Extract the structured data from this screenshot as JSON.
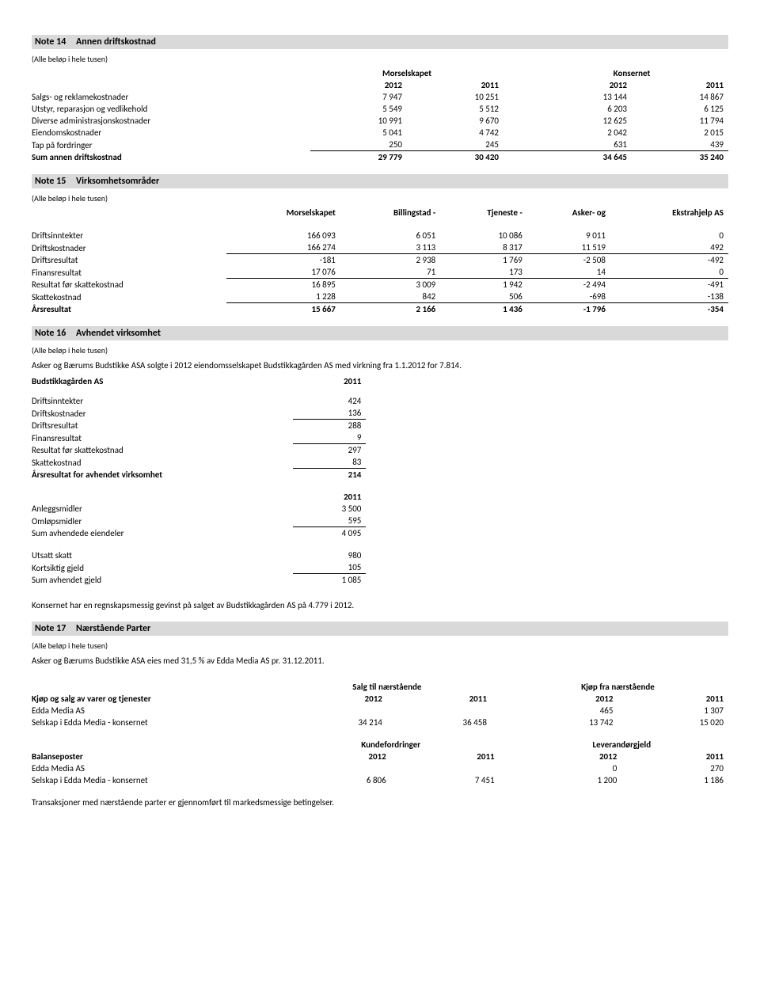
{
  "note14": {
    "title_num": "Note 14",
    "title_text": "Annen driftskostnad",
    "sub": "(Alle beløp i hele tusen)",
    "group_left": "Morselskapet",
    "group_right": "Konsernet",
    "years": [
      "2012",
      "2011",
      "2012",
      "2011"
    ],
    "rows": [
      {
        "label": "Salgs- og reklamekostnader",
        "v": [
          "7 947",
          "10 251",
          "13 144",
          "14 867"
        ]
      },
      {
        "label": "Utstyr, reparasjon og vedlikehold",
        "v": [
          "5 549",
          "5 512",
          "6 203",
          "6 125"
        ]
      },
      {
        "label": "Diverse administrasjonskostnader",
        "v": [
          "10 991",
          "9 670",
          "12 625",
          "11 794"
        ]
      },
      {
        "label": "Eiendomskostnader",
        "v": [
          "5 041",
          "4 742",
          "2 042",
          "2 015"
        ]
      },
      {
        "label": "Tap på fordringer",
        "v": [
          "250",
          "245",
          "631",
          "439"
        ]
      }
    ],
    "sum_label": "Sum annen driftskostnad",
    "sum": [
      "29 779",
      "30 420",
      "34 645",
      "35 240"
    ]
  },
  "note15": {
    "title_num": "Note 15",
    "title_text": "Virksomhetsområder",
    "sub": "(Alle beløp i hele tusen)",
    "cols": [
      "Morselskapet",
      "Billingstad -",
      "Tjeneste -",
      "Asker- og",
      "Ekstrahjelp AS"
    ],
    "rows": [
      {
        "label": "Driftsinntekter",
        "v": [
          "166 093",
          "6 051",
          "10 086",
          "9 011",
          "0"
        ]
      },
      {
        "label": "Driftskostnader",
        "v": [
          "166 274",
          "3 113",
          "8 317",
          "11 519",
          "492"
        ],
        "u": true
      },
      {
        "label": "Driftsresultat",
        "v": [
          "-181",
          "2 938",
          "1 769",
          "-2 508",
          "-492"
        ]
      },
      {
        "label": "Finansresultat",
        "v": [
          "17 076",
          "71",
          "173",
          "14",
          "0"
        ],
        "u": true
      },
      {
        "label": "Resultat før skattekostnad",
        "v": [
          "16 895",
          "3 009",
          "1 942",
          "-2 494",
          "-491"
        ]
      },
      {
        "label": "Skattekostnad",
        "v": [
          "1 228",
          "842",
          "506",
          "-698",
          "-138"
        ],
        "u": true
      },
      {
        "label": "Årsresultat",
        "v": [
          "15 667",
          "2 166",
          "1 436",
          "-1 796",
          "-354"
        ],
        "b": true
      }
    ]
  },
  "note16": {
    "title_num": "Note 16",
    "title_text": "Avhendet virksomhet",
    "sub": "(Alle beløp i hele tusen)",
    "intro": "Asker og Bærums Budstikke ASA solgte i 2012 eiendomsselskapet Budstikkagården AS med virkning fra 1.1.2012 for 7.814.",
    "t1_header_label": "Budstikkagården AS",
    "t1_header_year": "2011",
    "t1": [
      {
        "label": "Driftsinntekter",
        "v": "424"
      },
      {
        "label": "Driftskostnader",
        "v": "136",
        "u": true
      },
      {
        "label": "Driftsresultat",
        "v": "288"
      },
      {
        "label": "Finansresultat",
        "v": "9",
        "u": true
      },
      {
        "label": "Resultat før skattekostnad",
        "v": "297"
      },
      {
        "label": "Skattekostnad",
        "v": "83",
        "u": true
      },
      {
        "label": "Årsresultat for avhendet virksomhet",
        "v": "214",
        "b": true
      }
    ],
    "t2_header_year": "2011",
    "t2": [
      {
        "label": "Anleggsmidler",
        "v": "3 500"
      },
      {
        "label": "Omløpsmidler",
        "v": "595",
        "u": true
      },
      {
        "label": "Sum avhendede eiendeler",
        "v": "4 095"
      }
    ],
    "t3": [
      {
        "label": "Utsatt skatt",
        "v": "980"
      },
      {
        "label": "Kortsiktig gjeld",
        "v": "105",
        "u": true
      },
      {
        "label": "Sum avhendet gjeld",
        "v": "1 085"
      }
    ],
    "gain_text": "Konsernet har en regnskapsmessig gevinst på salget av Budstikkagården AS på 4.779 i 2012."
  },
  "note17": {
    "title_num": "Note 17",
    "title_text": "Nærstående Parter",
    "sub": "(Alle beløp i hele tusen)",
    "intro": "Asker og Bærums Budstikke ASA eies med 31,5 % av Edda Media AS pr. 31.12.2011.",
    "block1": {
      "group_left": "Salg til nærstående",
      "group_right": "Kjøp fra nærstående",
      "row_label": "Kjøp og salg av varer og tjenester",
      "years": [
        "2012",
        "2011",
        "2012",
        "2011"
      ],
      "rows": [
        {
          "label": "Edda Media AS",
          "v": [
            "",
            "",
            "465",
            "1 307"
          ]
        },
        {
          "label": "Selskap i Edda Media - konsernet",
          "v": [
            "34 214",
            "36 458",
            "13 742",
            "15 020"
          ]
        }
      ]
    },
    "block2": {
      "group_left": "Kundefordringer",
      "group_right": "Leverandørgjeld",
      "row_label": "Balanseposter",
      "years": [
        "2012",
        "2011",
        "2012",
        "2011"
      ],
      "rows": [
        {
          "label": "Edda Media AS",
          "v": [
            "",
            "",
            "0",
            "270"
          ]
        },
        {
          "label": "Selskap i Edda Media - konsernet",
          "v": [
            "6 806",
            "7 451",
            "1 200",
            "1 186"
          ]
        }
      ]
    },
    "footer": "Transaksjoner med nærstående parter er gjennomført til markedsmessige betingelser."
  }
}
